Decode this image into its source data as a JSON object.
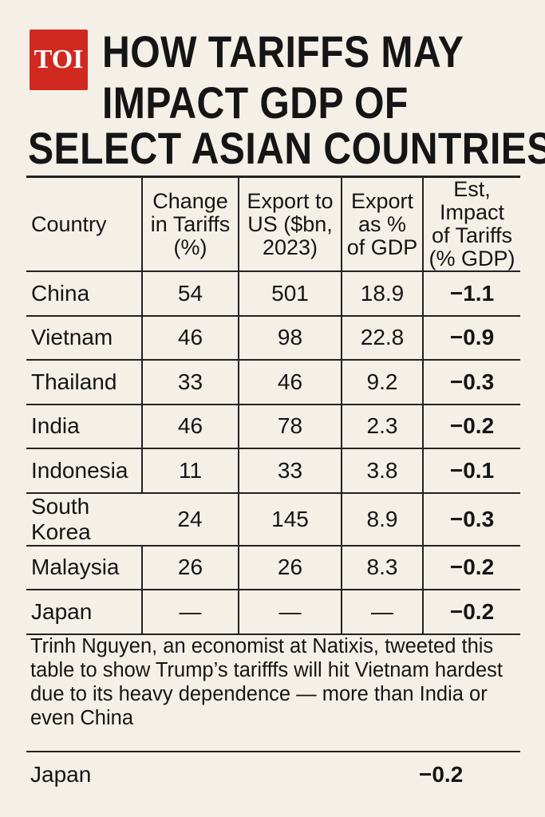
{
  "logo": "TOI",
  "title_lines": [
    "HOW TARIFFS MAY",
    "IMPACT GDP OF",
    "SELECT ASIAN COUNTRIES"
  ],
  "chart_data": {
    "type": "table",
    "title": "HOW TARIFFS MAY IMPACT GDP OF SELECT ASIAN COUNTRIES",
    "columns": [
      [
        "Country"
      ],
      [
        "Change",
        "in Tariffs",
        "(%)"
      ],
      [
        "Export to",
        "US ($bn,",
        "2023)"
      ],
      [
        "Export",
        "as %",
        "of GDP"
      ],
      [
        "Est, Impact",
        "of Tariffs",
        "(% GDP)"
      ]
    ],
    "rows": [
      [
        "China",
        "54",
        "501",
        "18.9",
        "−1.1"
      ],
      [
        "Vietnam",
        "46",
        "98",
        "22.8",
        "−0.9"
      ],
      [
        "Thailand",
        "33",
        "46",
        "9.2",
        "−0.3"
      ],
      [
        "India",
        "46",
        "78",
        "2.3",
        "−0.2"
      ],
      [
        "Indonesia",
        "11",
        "33",
        "3.8",
        "−0.1"
      ],
      [
        "South Korea",
        "24",
        "145",
        "8.9",
        "−0.3"
      ],
      [
        "Malaysia",
        "26",
        "26",
        "8.3",
        "−0.2"
      ],
      [
        "Japan",
        "—",
        "—",
        "—",
        "−0.2"
      ]
    ]
  },
  "caption": "Trinh Nguyen, an economist at Natixis, tweeted this table to show Trump’s tarifffs will hit Vietnam hardest due to its heavy dependence — more than India or even China",
  "footer": {
    "country": "Japan",
    "value": "−0.2"
  }
}
